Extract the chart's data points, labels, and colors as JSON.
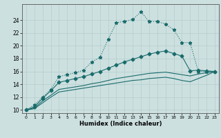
{
  "xlabel": "Humidex (Indice chaleur)",
  "xlim": [
    -0.5,
    23.5
  ],
  "ylim": [
    9.5,
    26.5
  ],
  "yticks": [
    10,
    12,
    14,
    16,
    18,
    20,
    22,
    24
  ],
  "xticks": [
    0,
    1,
    2,
    3,
    4,
    5,
    6,
    7,
    8,
    9,
    10,
    11,
    12,
    13,
    14,
    15,
    16,
    17,
    18,
    19,
    20,
    21,
    22,
    23
  ],
  "bg_color": "#cde0e0",
  "grid_color": "#b8d0d0",
  "line_color": "#1a6b6b",
  "lines": [
    {
      "x": [
        0,
        1,
        2,
        3,
        4,
        5,
        6,
        7,
        8,
        9,
        10,
        11,
        12,
        13,
        14,
        15,
        16,
        17,
        18,
        19,
        20,
        21,
        22,
        23
      ],
      "y": [
        10,
        10.8,
        12.0,
        13.2,
        15.2,
        15.5,
        15.8,
        16.2,
        17.5,
        18.2,
        21.0,
        23.6,
        23.8,
        24.1,
        25.3,
        23.8,
        23.8,
        23.4,
        22.5,
        20.5,
        20.5,
        16.0,
        16.0,
        16.0
      ],
      "style": "dotted",
      "marker": "*",
      "markersize": 3.5
    },
    {
      "x": [
        0,
        1,
        2,
        3,
        4,
        5,
        6,
        7,
        8,
        9,
        10,
        11,
        12,
        13,
        14,
        15,
        16,
        17,
        18,
        19,
        20,
        21,
        22,
        23
      ],
      "y": [
        10,
        10.5,
        11.8,
        13.0,
        14.3,
        14.6,
        14.9,
        15.2,
        15.6,
        16.0,
        16.5,
        17.0,
        17.5,
        17.9,
        18.3,
        18.7,
        19.0,
        19.2,
        18.8,
        18.4,
        16.1,
        16.2,
        16.1,
        16.0
      ],
      "style": "solid",
      "marker": "D",
      "markersize": 2.5
    },
    {
      "x": [
        0,
        1,
        2,
        3,
        4,
        5,
        6,
        7,
        8,
        9,
        10,
        11,
        12,
        13,
        14,
        15,
        16,
        17,
        18,
        19,
        20,
        21,
        22,
        23
      ],
      "y": [
        10,
        10.3,
        11.4,
        12.3,
        13.2,
        13.4,
        13.6,
        13.8,
        14.1,
        14.3,
        14.6,
        14.9,
        15.1,
        15.3,
        15.5,
        15.7,
        15.8,
        15.9,
        15.7,
        15.5,
        15.3,
        15.6,
        15.8,
        16.0
      ],
      "style": "solid",
      "marker": null,
      "markersize": 0
    },
    {
      "x": [
        0,
        1,
        2,
        3,
        4,
        5,
        6,
        7,
        8,
        9,
        10,
        11,
        12,
        13,
        14,
        15,
        16,
        17,
        18,
        19,
        20,
        21,
        22,
        23
      ],
      "y": [
        10,
        10.2,
        11.1,
        12.0,
        12.8,
        13.0,
        13.2,
        13.4,
        13.6,
        13.8,
        14.0,
        14.2,
        14.4,
        14.6,
        14.7,
        14.9,
        15.0,
        15.1,
        14.9,
        14.6,
        14.4,
        14.9,
        15.4,
        16.0
      ],
      "style": "solid",
      "marker": null,
      "markersize": 0
    }
  ]
}
